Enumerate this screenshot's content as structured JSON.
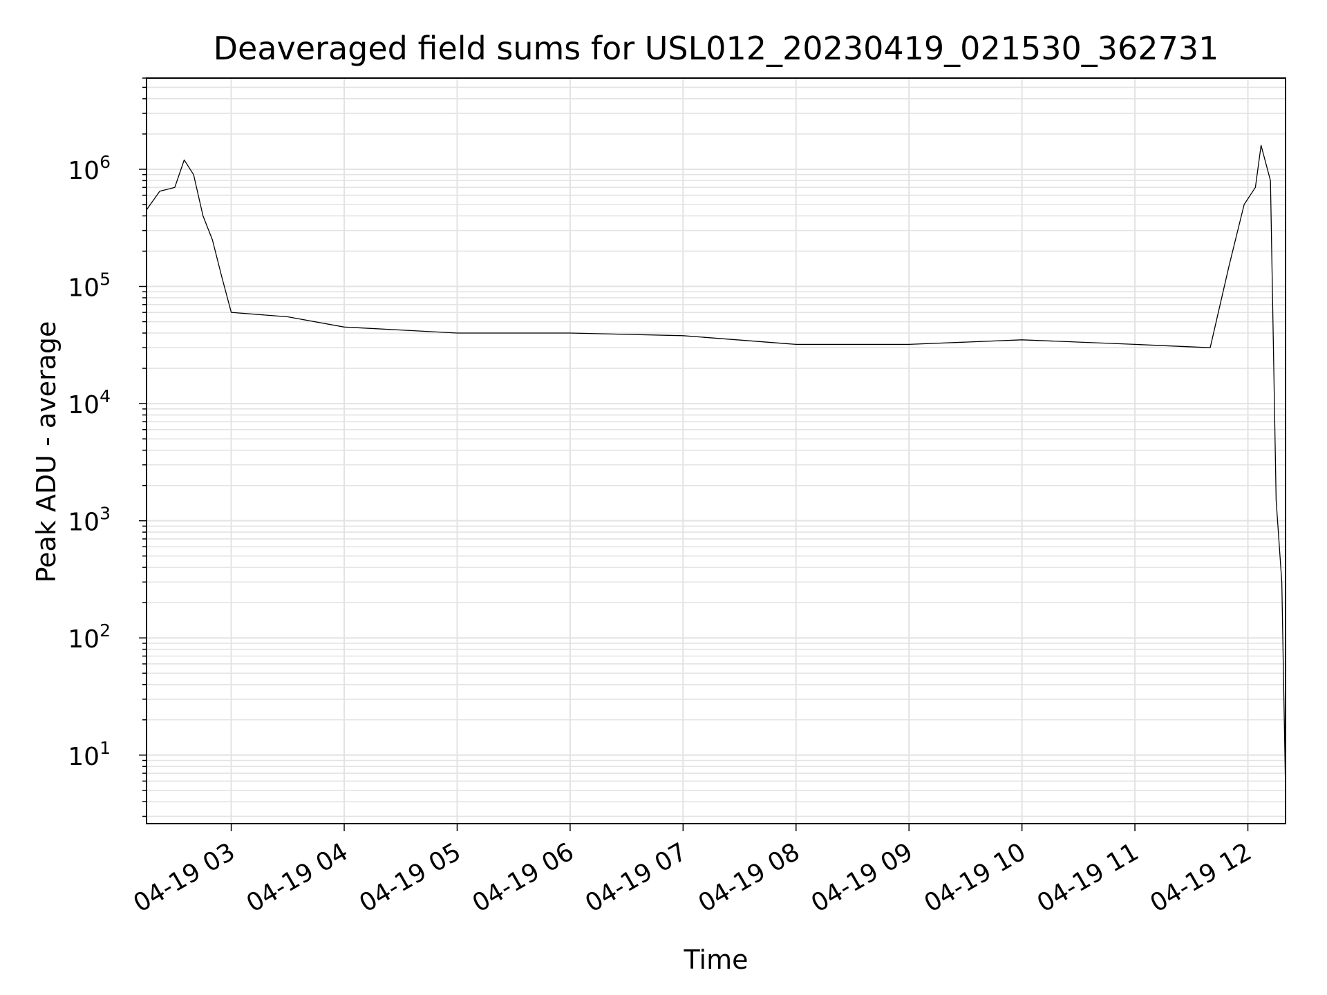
{
  "chart_data": {
    "type": "line",
    "title": "Deaveraged field sums for USL012_20230419_021530_362731",
    "xlabel": "Time",
    "ylabel": "Peak ADU - average",
    "y_scale": "log",
    "ylim": [
      2.6,
      6000000
    ],
    "xlim": [
      "2023-04-19 02:15",
      "2023-04-19 12:20"
    ],
    "x_ticks": [
      "04-19 03",
      "04-19 04",
      "04-19 05",
      "04-19 06",
      "04-19 07",
      "04-19 08",
      "04-19 09",
      "04-19 10",
      "04-19 11",
      "04-19 12"
    ],
    "y_ticks": [
      {
        "base": "10",
        "exp": "1"
      },
      {
        "base": "10",
        "exp": "2"
      },
      {
        "base": "10",
        "exp": "3"
      },
      {
        "base": "10",
        "exp": "4"
      },
      {
        "base": "10",
        "exp": "5"
      },
      {
        "base": "10",
        "exp": "6"
      }
    ],
    "grid": "major and minor",
    "line_color": "#000000",
    "grid_color": "#e3e3e3",
    "series": [
      {
        "values_approx": "noisy signal fluctuating between baseline and bursts",
        "x": [
          "2023-04-19 02:15",
          "2023-04-19 02:22",
          "2023-04-19 02:30",
          "2023-04-19 02:35",
          "2023-04-19 02:40",
          "2023-04-19 02:45",
          "2023-04-19 02:50",
          "2023-04-19 02:55",
          "2023-04-19 03:00",
          "2023-04-19 03:30",
          "2023-04-19 04:00",
          "2023-04-19 05:00",
          "2023-04-19 06:00",
          "2023-04-19 07:00",
          "2023-04-19 08:00",
          "2023-04-19 09:00",
          "2023-04-19 10:00",
          "2023-04-19 11:00",
          "2023-04-19 11:40",
          "2023-04-19 11:50",
          "2023-04-19 11:58",
          "2023-04-19 12:04",
          "2023-04-19 12:07",
          "2023-04-19 12:12",
          "2023-04-19 12:15",
          "2023-04-19 12:18",
          "2023-04-19 12:20"
        ],
        "y": [
          450000,
          650000,
          700000,
          1200000,
          900000,
          400000,
          250000,
          120000,
          60000,
          55000,
          45000,
          40000,
          40000,
          38000,
          32000,
          32000,
          35000,
          32000,
          30000,
          150000,
          500000,
          700000,
          1600000,
          800000,
          1500,
          300,
          5
        ]
      }
    ]
  }
}
